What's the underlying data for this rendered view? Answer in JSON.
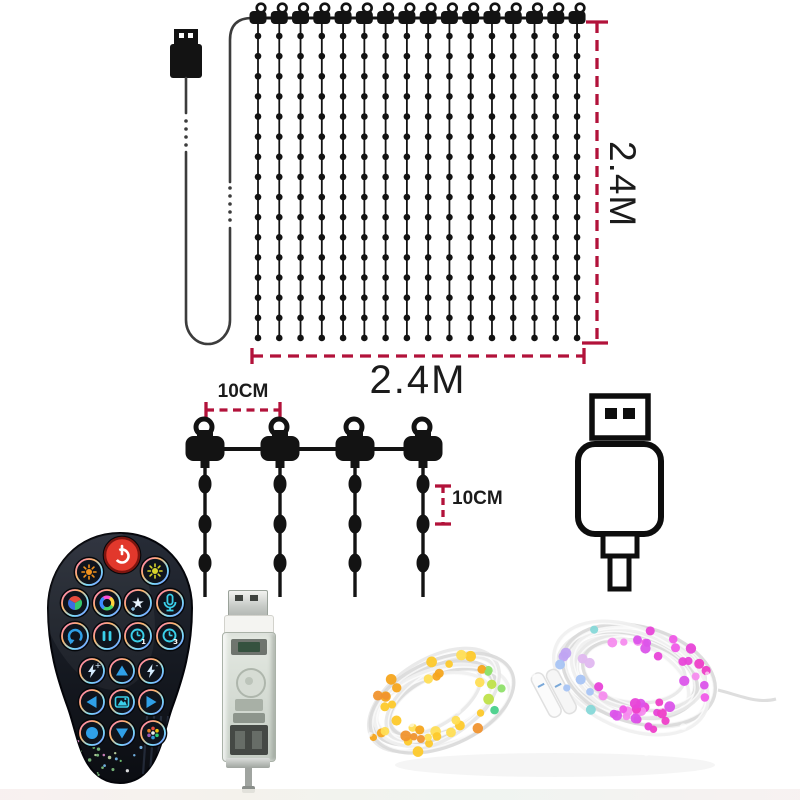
{
  "labels": {
    "curtain_width": "2.4M",
    "curtain_height": "2.4M",
    "hook_spacing": "10CM",
    "led_spacing": "10CM"
  },
  "curtain": {
    "strands": 16,
    "leds_per_strand": 16,
    "hook_count": 16
  },
  "hook_detail": {
    "hook_count": 4,
    "beads_per_strand": 3
  },
  "colors": {
    "dimension_red": "#b2123a",
    "line_black": "#131313",
    "cable_gray": "#3c3c3c",
    "remote_body_dark": "#11141b",
    "power_red": "#e2382c",
    "sun_orange": "#f2921d",
    "sun_yellow": "#d8d52c",
    "icon_teal": "#3ad0ea",
    "icon_blue": "#2fa0e8",
    "icon_light": "#d6ecff"
  },
  "remote": {
    "buttons": [
      {
        "name": "power-button",
        "icon": "power"
      },
      {
        "name": "brightness-down-button",
        "icon": "sun-dim"
      },
      {
        "name": "brightness-up-button",
        "icon": "sun-bright"
      },
      {
        "name": "color-palette-button",
        "icon": "palette"
      },
      {
        "name": "color-wheel-button",
        "icon": "wheel"
      },
      {
        "name": "effect-star-button",
        "icon": "star"
      },
      {
        "name": "music-mic-button",
        "icon": "mic"
      },
      {
        "name": "undo-button",
        "icon": "undo"
      },
      {
        "name": "pause-button",
        "icon": "pause"
      },
      {
        "name": "timer-1-button",
        "icon": "clock",
        "digit": "1"
      },
      {
        "name": "timer-3-button",
        "icon": "clock",
        "digit": "3"
      },
      {
        "name": "speed-up-button",
        "icon": "bolt",
        "sign": "+"
      },
      {
        "name": "arrow-up-button",
        "icon": "tri-up"
      },
      {
        "name": "speed-down-button",
        "icon": "bolt",
        "sign": "-"
      },
      {
        "name": "arrow-left-button",
        "icon": "tri-left"
      },
      {
        "name": "scene-button",
        "icon": "scene"
      },
      {
        "name": "arrow-right-button",
        "icon": "tri-right"
      },
      {
        "name": "record-button",
        "icon": "record"
      },
      {
        "name": "arrow-down-button",
        "icon": "tri-down"
      },
      {
        "name": "multicolor-button",
        "icon": "dots"
      }
    ]
  },
  "lights_bundle": {
    "left_led_colors": [
      "#f5a51d",
      "#fdc92b",
      "#ffde55",
      "#f0932f"
    ],
    "center_led_colors": [
      "#49d08a",
      "#35c9a8",
      "#8fe06a",
      "#bfe24a"
    ],
    "right_led_colors": [
      "#f05ae8",
      "#e845d8",
      "#db55ea",
      "#f58cee",
      "#ee3fc8"
    ],
    "pastel_led_colors": [
      "#a8c4f4",
      "#c0a4f2",
      "#86d8d8",
      "#e0b8f0"
    ],
    "wire_color": "#e2e2e2"
  }
}
